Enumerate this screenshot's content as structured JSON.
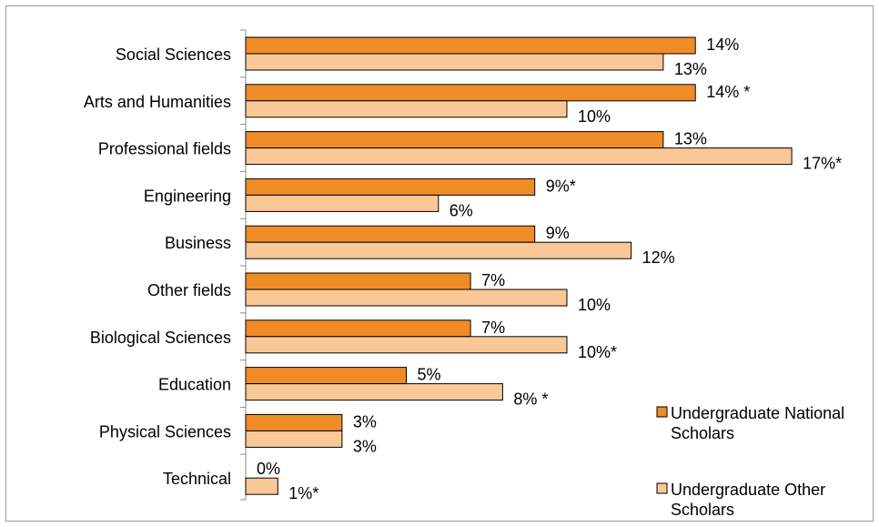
{
  "chart_data": {
    "type": "bar",
    "orientation": "horizontal",
    "categories": [
      "Social Sciences",
      "Arts and Humanities",
      "Professional fields",
      "Engineering",
      "Business",
      "Other fields",
      "Biological Sciences",
      "Education",
      "Physical Sciences",
      "Technical"
    ],
    "series": [
      {
        "name": "Undergraduate National Scholars",
        "color": "#F08C28",
        "values": [
          14,
          14,
          13,
          9,
          9,
          7,
          7,
          5,
          3,
          0
        ],
        "labels": [
          "14%",
          "14% *",
          "13%",
          "9%*",
          "9%",
          "7%",
          "7%",
          "5%",
          "3%",
          "0%"
        ]
      },
      {
        "name": "Undergraduate Other Scholars",
        "color": "#FAC896",
        "values": [
          13,
          10,
          17,
          6,
          12,
          10,
          10,
          8,
          3,
          1
        ],
        "labels": [
          "13%",
          "10%",
          "17%*",
          "6%",
          "12%",
          "10%",
          "10%*",
          "8% *",
          "3%",
          "1%*"
        ]
      }
    ],
    "xlim": [
      0,
      18
    ],
    "grid": false,
    "legend": "right",
    "title": "",
    "xlabel": "",
    "ylabel": ""
  }
}
